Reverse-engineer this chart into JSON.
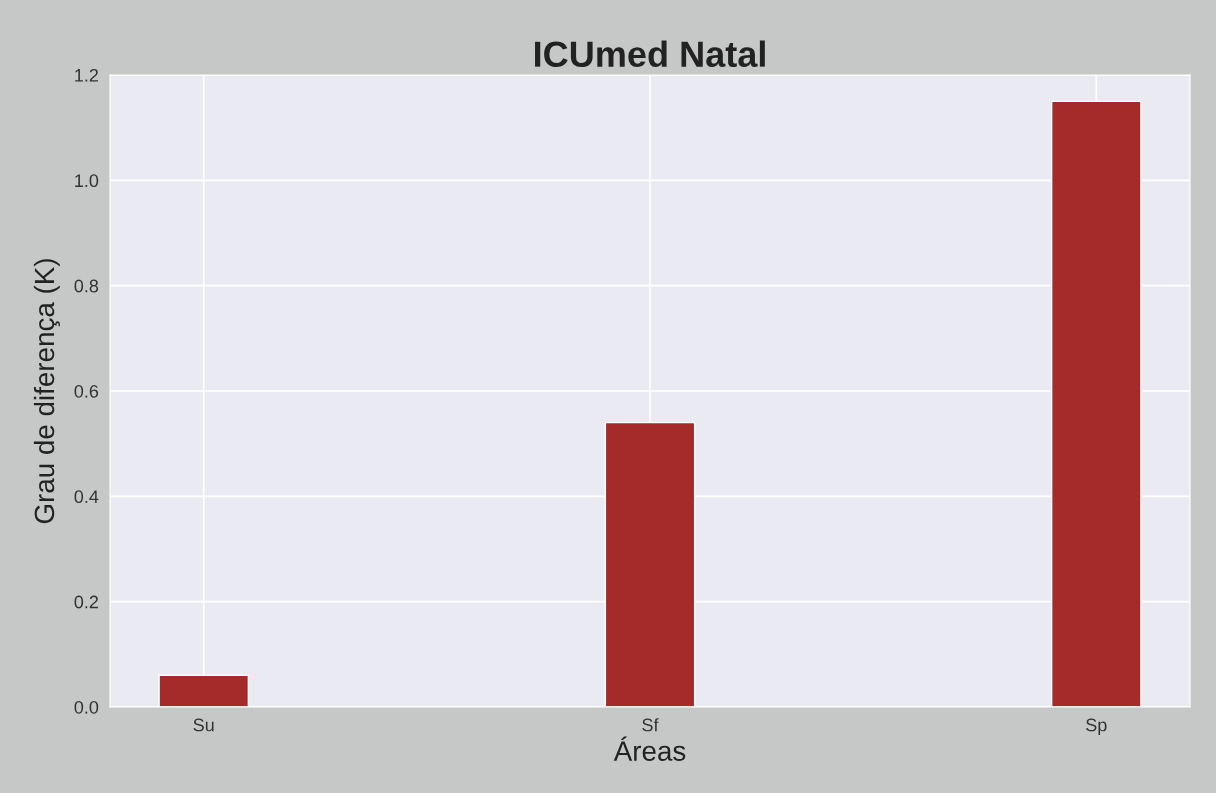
{
  "chart_data": {
    "type": "bar",
    "title": "ICUmed Natal",
    "xlabel": "Áreas",
    "ylabel": "Grau de diferença (K)",
    "categories": [
      "Su",
      "Sf",
      "Sp"
    ],
    "values": [
      0.06,
      0.54,
      1.15
    ],
    "color": "#a52a2a",
    "ylim": [
      0,
      1.2
    ],
    "yticks": [
      {
        "value": 0,
        "label": "0.0"
      },
      0.2,
      0.4,
      0.6,
      0.8,
      {
        "value": 1,
        "label": "1.0"
      },
      1.2
    ],
    "grid": true
  }
}
